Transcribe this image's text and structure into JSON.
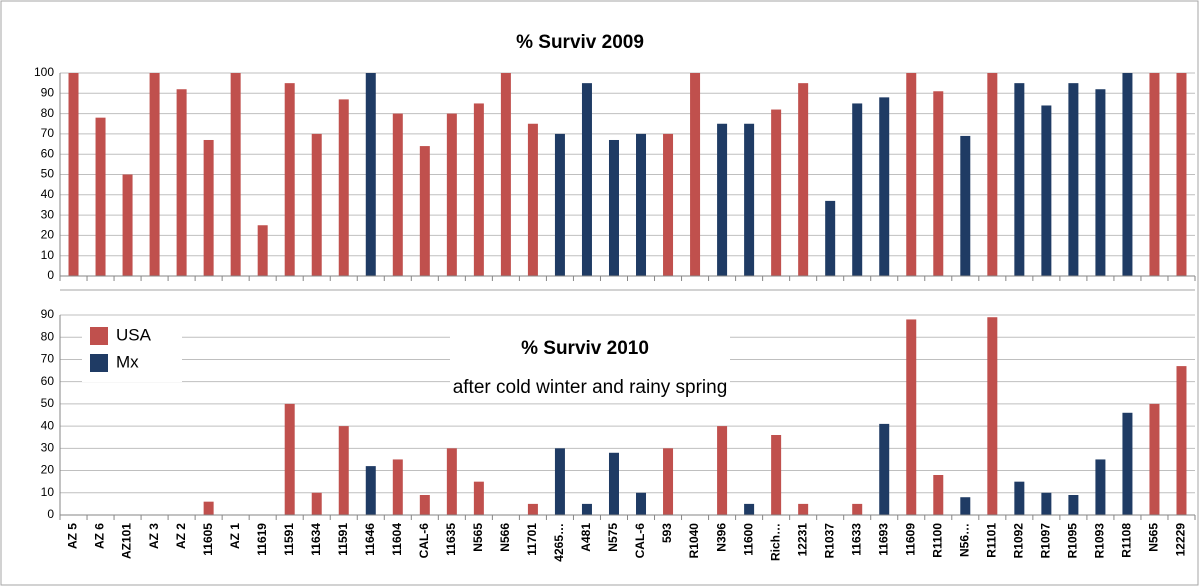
{
  "chart_data": [
    {
      "type": "bar",
      "title": "% Surviv 2009",
      "ylim": [
        0,
        100
      ],
      "yticks": [
        0,
        10,
        20,
        30,
        40,
        50,
        60,
        70,
        80,
        90,
        100
      ],
      "grid": true,
      "series": [
        {
          "color": "#c0504d",
          "values": [
            100,
            78,
            50,
            100,
            92,
            67,
            100,
            25,
            95,
            70,
            87,
            null,
            80,
            64,
            80,
            85,
            100,
            75,
            null,
            null,
            null,
            null,
            70,
            100,
            null,
            null,
            82,
            95,
            null,
            null,
            null,
            100,
            91,
            null,
            100,
            null,
            null,
            null,
            null,
            null,
            100,
            100
          ]
        },
        {
          "color": "#1f3b64",
          "values": [
            null,
            null,
            null,
            null,
            null,
            null,
            null,
            null,
            null,
            null,
            null,
            100,
            null,
            null,
            null,
            null,
            null,
            null,
            70,
            95,
            67,
            70,
            null,
            null,
            75,
            75,
            null,
            null,
            37,
            85,
            88,
            null,
            null,
            69,
            null,
            95,
            84,
            95,
            92,
            100,
            null,
            null
          ]
        }
      ]
    },
    {
      "type": "bar",
      "title": "% Surviv 2010",
      "subtitle": "after cold winter and rainy spring",
      "categories": [
        "AZ 5",
        "AZ 6",
        "AZ101",
        "AZ 3",
        "AZ 2",
        "11605",
        "AZ 1",
        "11619",
        "11591",
        "11634",
        "11591",
        "11646",
        "11604",
        "CAL-6",
        "11635",
        "N565",
        "N566",
        "11701",
        "4265…",
        "A481",
        "N575",
        "CAL-6",
        "593",
        "R1040",
        "N396",
        "11600",
        "Rich…",
        "12231",
        "R1037",
        "11633",
        "11693",
        "11609",
        "R1100",
        "N56…",
        "R1101",
        "R1092",
        "R1097",
        "R1095",
        "R1093",
        "R1108",
        "N565",
        "12229"
      ],
      "ylim": [
        0,
        90
      ],
      "yticks": [
        0,
        10,
        20,
        30,
        40,
        50,
        60,
        70,
        80,
        90
      ],
      "grid": true,
      "legend": "top-left",
      "series": [
        {
          "name": "USA",
          "color": "#c0504d",
          "values": [
            0,
            0,
            0,
            0,
            0,
            6,
            0,
            0,
            50,
            10,
            40,
            null,
            25,
            9,
            30,
            15,
            0,
            5,
            null,
            null,
            null,
            null,
            30,
            0,
            40,
            null,
            36,
            5,
            null,
            5,
            null,
            88,
            18,
            null,
            89,
            null,
            null,
            null,
            null,
            null,
            50,
            67
          ]
        },
        {
          "name": "Mx",
          "color": "#1f3b64",
          "values": [
            null,
            null,
            null,
            null,
            null,
            null,
            null,
            null,
            null,
            null,
            null,
            22,
            null,
            null,
            null,
            null,
            null,
            null,
            30,
            5,
            28,
            10,
            null,
            null,
            null,
            5,
            null,
            null,
            0,
            null,
            41,
            null,
            null,
            8,
            null,
            15,
            10,
            9,
            25,
            46,
            null,
            null
          ]
        }
      ]
    }
  ]
}
